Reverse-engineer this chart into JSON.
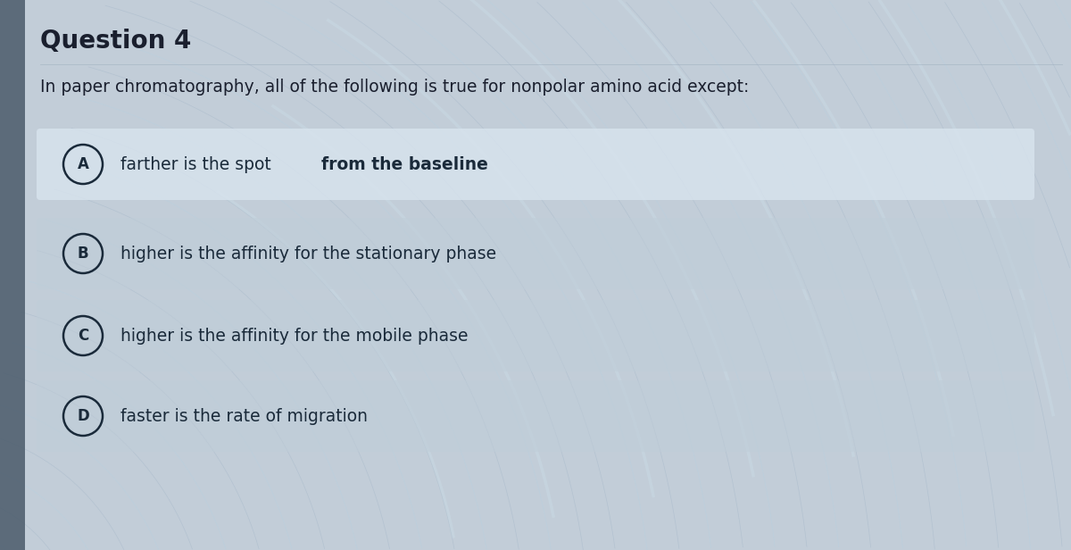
{
  "title": "Question 4",
  "question": "In paper chromatography, all of the following is true for nonpolar amino acid except:",
  "options": [
    {
      "letter": "A",
      "text_plain": "farther is the spot ",
      "text_bold": "from the baseline",
      "highlighted": true
    },
    {
      "letter": "B",
      "text_plain": "higher is the affinity for the stationary phase",
      "text_bold": "",
      "highlighted": false
    },
    {
      "letter": "C",
      "text_plain": "higher is the affinity for the mobile phase",
      "text_bold": "",
      "highlighted": false
    },
    {
      "letter": "D",
      "text_plain": "faster is the rate of migration",
      "text_bold": "",
      "highlighted": false
    }
  ],
  "bg_color": "#c2cdd8",
  "sidebar_color": "#4a5a6a",
  "option_box_color_normal": "#bfcdd8",
  "option_box_color_highlighted": "#d8e4ee",
  "title_color": "#1a1f2e",
  "question_color": "#1a1f2e",
  "text_color": "#1a2a3a",
  "circle_edge_color": "#1a2a3a",
  "wave_color": "#aabbcc",
  "wave_color2": "#b8d0e0",
  "figsize": [
    12.0,
    6.16
  ],
  "dpi": 100
}
